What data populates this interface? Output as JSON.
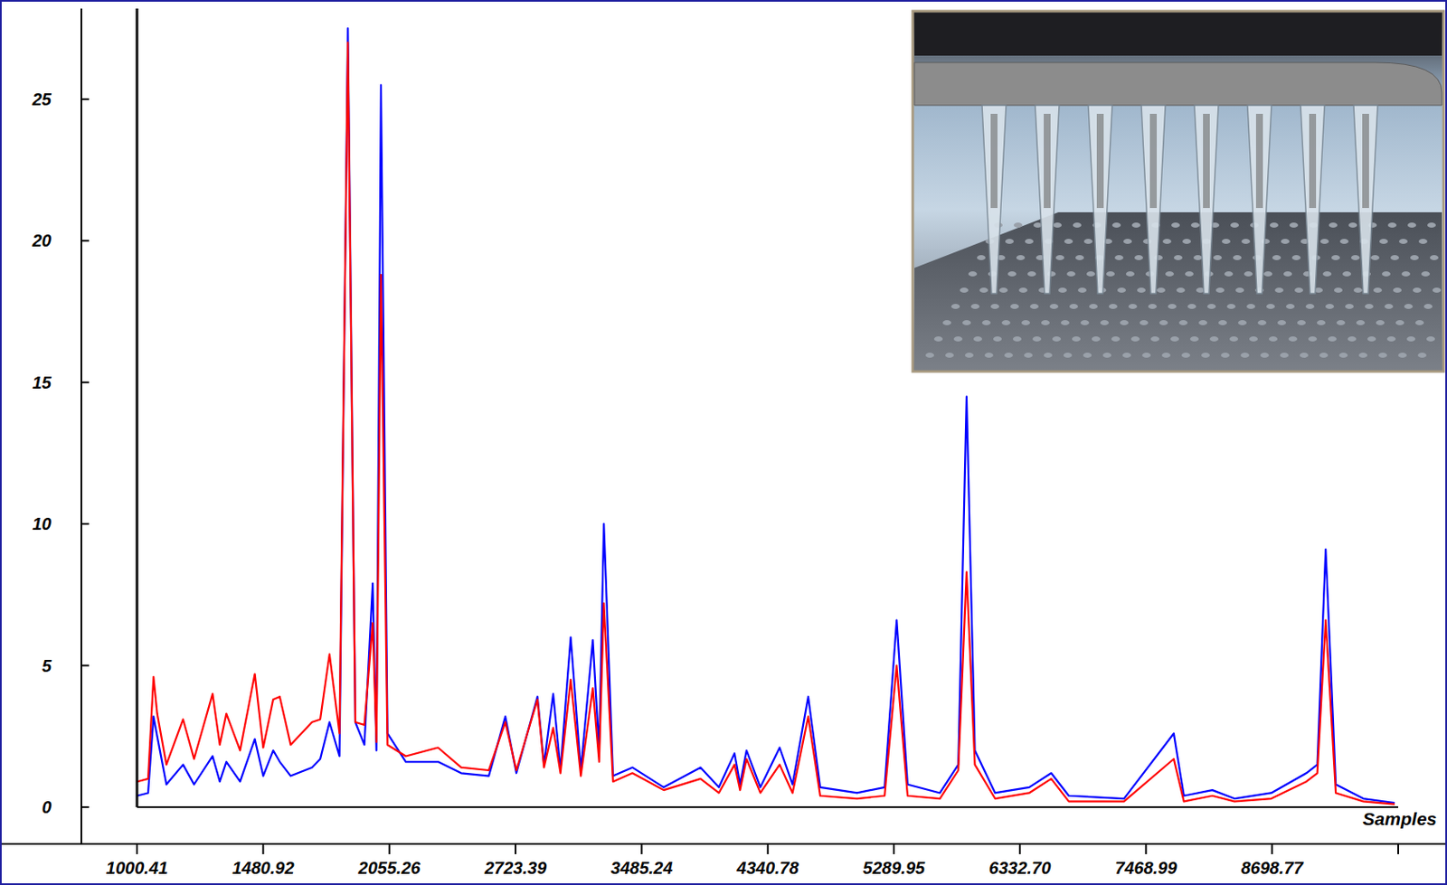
{
  "chart_data": {
    "type": "line",
    "x_label": "Samples",
    "x": [
      1001,
      1039,
      1058,
      1071,
      1104,
      1165,
      1206,
      1277,
      1305,
      1331,
      1386,
      1446,
      1481,
      1523,
      1551,
      1598,
      1692,
      1729,
      1771,
      1817,
      1856,
      1891,
      1934,
      1974,
      1992,
      2014,
      2046,
      2137,
      2302,
      2424,
      2574,
      2666,
      2728,
      2849,
      2887,
      2941,
      2984,
      3045,
      3106,
      3179,
      3218,
      3247,
      3304,
      3426,
      3628,
      3873,
      3998,
      4106,
      4145,
      4190,
      4288,
      4426,
      4520,
      4635,
      4724,
      5003,
      5217,
      5312,
      5399,
      5660,
      5811,
      5880,
      5949,
      6120,
      6413,
      6606,
      6762,
      7264,
      7732,
      7829,
      8105,
      8323,
      8692,
      9050,
      9164,
      9251,
      9357,
      9649,
      9986
    ],
    "series": [
      {
        "color": "#0000ff",
        "values": [
          0.4,
          0.5,
          3.2,
          2.5,
          0.8,
          1.5,
          0.8,
          1.8,
          0.9,
          1.6,
          0.9,
          2.4,
          1.1,
          2.0,
          1.6,
          1.1,
          1.4,
          1.7,
          3.0,
          1.8,
          27.5,
          3.0,
          2.2,
          7.9,
          2.0,
          25.5,
          2.6,
          1.6,
          1.6,
          1.2,
          1.1,
          3.2,
          1.2,
          3.9,
          1.5,
          4.0,
          1.3,
          6.0,
          1.3,
          5.9,
          2.0,
          10.0,
          1.1,
          1.4,
          0.7,
          1.4,
          0.7,
          1.9,
          0.8,
          2.0,
          0.7,
          2.1,
          0.8,
          3.9,
          0.7,
          0.5,
          0.7,
          6.6,
          0.8,
          0.5,
          1.5,
          14.5,
          2.0,
          0.5,
          0.7,
          1.2,
          0.4,
          0.3,
          2.6,
          0.4,
          0.6,
          0.3,
          0.5,
          1.2,
          1.5,
          9.1,
          0.8,
          0.3,
          0.15
        ]
      },
      {
        "color": "#ff0000",
        "values": [
          0.9,
          1.0,
          4.6,
          3.3,
          1.5,
          3.1,
          1.7,
          4.0,
          2.2,
          3.3,
          2.0,
          4.7,
          2.1,
          3.8,
          3.9,
          2.2,
          3.0,
          3.1,
          5.4,
          2.6,
          27.0,
          3.0,
          2.9,
          6.5,
          2.3,
          18.8,
          2.2,
          1.8,
          2.1,
          1.4,
          1.3,
          3.0,
          1.3,
          3.8,
          1.4,
          2.8,
          1.2,
          4.5,
          1.1,
          4.2,
          1.6,
          7.2,
          0.9,
          1.2,
          0.6,
          1.0,
          0.5,
          1.5,
          0.6,
          1.7,
          0.5,
          1.5,
          0.5,
          3.2,
          0.4,
          0.3,
          0.4,
          5.0,
          0.4,
          0.3,
          1.3,
          8.3,
          1.5,
          0.3,
          0.5,
          1.0,
          0.2,
          0.2,
          1.7,
          0.2,
          0.4,
          0.2,
          0.3,
          0.9,
          1.2,
          6.6,
          0.5,
          0.2,
          0.1
        ]
      }
    ],
    "xlim": [
      1000.41,
      10024
    ],
    "xticks": [
      1000.41,
      1480.92,
      2055.26,
      2723.39,
      3485.24,
      4340.78,
      5289.95,
      {
        "value": 6332.7,
        "label": "6332.70"
      },
      7468.99,
      8698.77
    ],
    "ylim": [
      -1.3,
      28.2
    ],
    "yticks": [
      0,
      5,
      10,
      15,
      20,
      25
    ],
    "grid": false
  }
}
